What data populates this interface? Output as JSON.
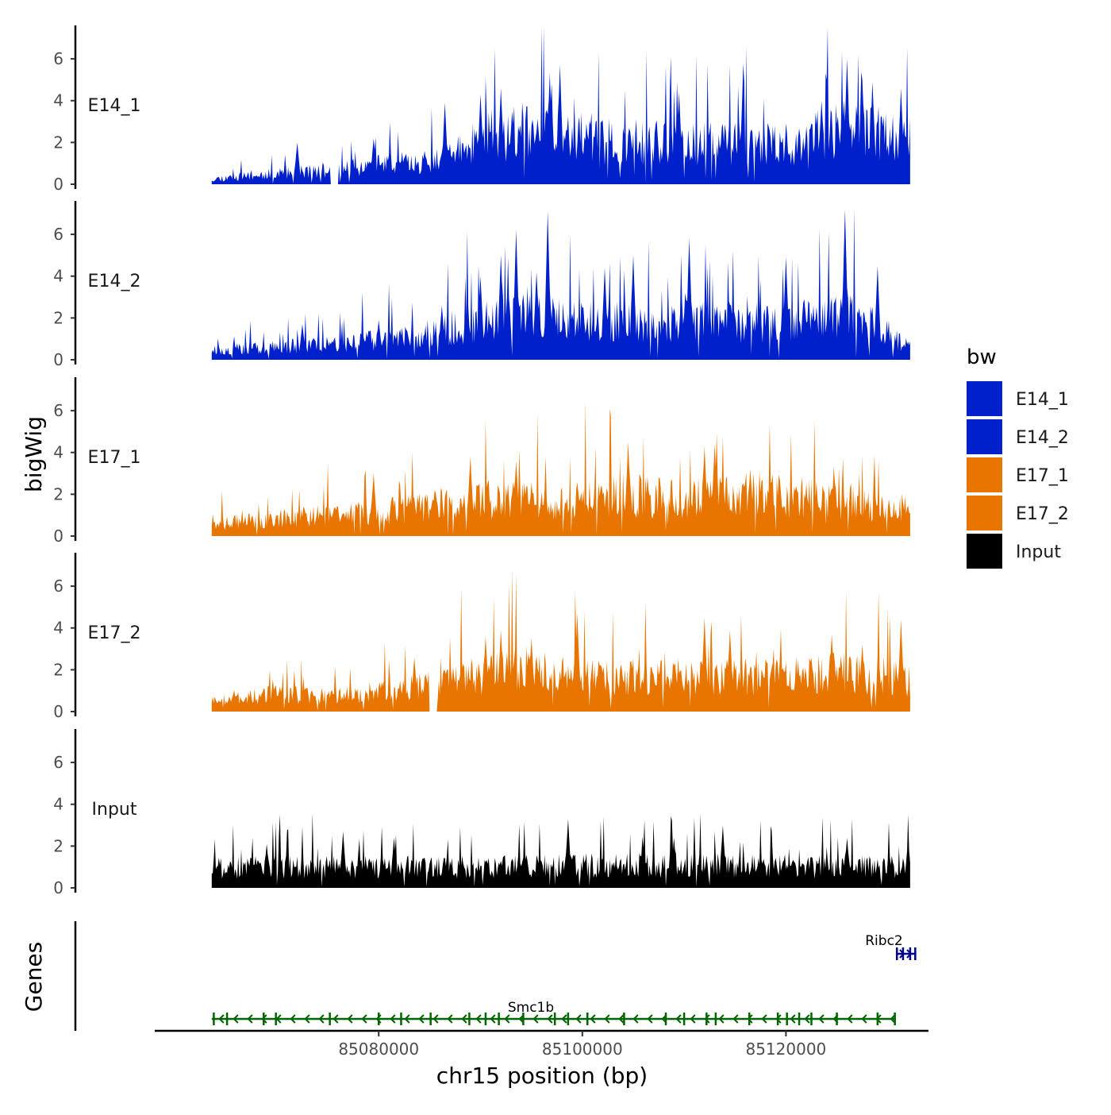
{
  "chart_data": {
    "type": "area",
    "title": "",
    "xlabel": "chr15 position (bp)",
    "ylabel_tracks": "bigWig",
    "ylabel_genes": "Genes",
    "xlim": [
      85058000,
      85134000
    ],
    "ylim": [
      0,
      7.6
    ],
    "x_ticks": [
      85080000,
      85100000,
      85120000
    ],
    "x_tick_labels": [
      "85080000",
      "85100000",
      "85120000"
    ],
    "y_ticks": [
      0,
      2,
      4,
      6
    ],
    "y_tick_labels": [
      "0",
      "2",
      "4",
      "6"
    ],
    "data_range": [
      85063600,
      85132200
    ],
    "legend": {
      "title": "bw",
      "position": "right",
      "entries": [
        {
          "label": "E14_1",
          "color": "#0020CC"
        },
        {
          "label": "E14_2",
          "color": "#0020CC"
        },
        {
          "label": "E17_1",
          "color": "#E87500"
        },
        {
          "label": "E17_2",
          "color": "#E87500"
        },
        {
          "label": "Input",
          "color": "#000000"
        }
      ]
    },
    "series": [
      {
        "name": "E14_1",
        "color": "#0020CC",
        "seed": 11,
        "profile": [
          [
            85063600,
            0.25
          ],
          [
            85070000,
            0.5
          ],
          [
            85076000,
            0.7
          ],
          [
            85080000,
            0.9
          ],
          [
            85086000,
            1.1
          ],
          [
            85090000,
            2.2
          ],
          [
            85095000,
            2.5
          ],
          [
            85100000,
            2.0
          ],
          [
            85110000,
            1.9
          ],
          [
            85120000,
            1.9
          ],
          [
            85126000,
            2.6
          ],
          [
            85132200,
            2.0
          ]
        ],
        "peaks": [
          [
            85072000,
            2.0
          ],
          [
            85079500,
            2.2
          ],
          [
            85086500,
            3.9
          ],
          [
            85090000,
            4.3
          ],
          [
            85092000,
            4.6
          ],
          [
            85096800,
            5.3
          ],
          [
            85097800,
            5.7
          ],
          [
            85109500,
            4.4
          ],
          [
            85123500,
            4.0
          ],
          [
            85126000,
            6.0
          ],
          [
            85127500,
            5.0
          ],
          [
            85128500,
            4.9
          ],
          [
            85131300,
            4.6
          ]
        ],
        "gaps": [
          [
            85075300,
            85076000
          ]
        ]
      },
      {
        "name": "E14_2",
        "color": "#0020CC",
        "seed": 23,
        "profile": [
          [
            85063600,
            0.45
          ],
          [
            85070000,
            0.6
          ],
          [
            85076000,
            0.8
          ],
          [
            85082000,
            1.0
          ],
          [
            85088000,
            1.6
          ],
          [
            85093000,
            2.0
          ],
          [
            85100000,
            1.8
          ],
          [
            85110000,
            1.8
          ],
          [
            85120000,
            1.7
          ],
          [
            85125000,
            2.2
          ],
          [
            85129000,
            1.5
          ],
          [
            85132200,
            0.6
          ]
        ],
        "peaks": [
          [
            85072500,
            1.7
          ],
          [
            85080000,
            1.9
          ],
          [
            85086200,
            2.6
          ],
          [
            85090000,
            4.0
          ],
          [
            85092000,
            5.0
          ],
          [
            85093500,
            6.2
          ],
          [
            85095500,
            4.2
          ],
          [
            85096600,
            7.1
          ],
          [
            85102200,
            4.4
          ],
          [
            85105000,
            5.0
          ],
          [
            85110500,
            5.8
          ],
          [
            85120000,
            4.9
          ],
          [
            85125800,
            7.2
          ],
          [
            85129000,
            4.5
          ]
        ],
        "gaps": []
      },
      {
        "name": "E17_1",
        "color": "#E87500",
        "seed": 37,
        "profile": [
          [
            85063600,
            0.6
          ],
          [
            85070000,
            0.8
          ],
          [
            85076000,
            1.0
          ],
          [
            85082000,
            1.2
          ],
          [
            85090000,
            1.7
          ],
          [
            85098000,
            1.6
          ],
          [
            85104000,
            1.9
          ],
          [
            85110000,
            1.8
          ],
          [
            85116000,
            2.0
          ],
          [
            85124000,
            1.7
          ],
          [
            85132200,
            1.3
          ]
        ],
        "peaks": [
          [
            85079500,
            3.0
          ],
          [
            85085500,
            2.2
          ],
          [
            85089000,
            3.8
          ],
          [
            85093500,
            3.6
          ],
          [
            85104500,
            4.5
          ],
          [
            85112000,
            4.3
          ],
          [
            85113000,
            4.4
          ],
          [
            85116500,
            3.2
          ]
        ],
        "gaps": []
      },
      {
        "name": "E17_2",
        "color": "#E87500",
        "seed": 53,
        "profile": [
          [
            85063600,
            0.6
          ],
          [
            85070000,
            0.8
          ],
          [
            85076000,
            0.7
          ],
          [
            85082000,
            1.1
          ],
          [
            85086000,
            1.3
          ],
          [
            85090000,
            1.7
          ],
          [
            85095000,
            2.0
          ],
          [
            85100000,
            1.6
          ],
          [
            85110000,
            1.6
          ],
          [
            85120000,
            1.6
          ],
          [
            85126000,
            1.9
          ],
          [
            85132200,
            1.5
          ]
        ],
        "peaks": [
          [
            85083500,
            2.6
          ],
          [
            85090500,
            3.6
          ],
          [
            85092000,
            3.9
          ],
          [
            85095000,
            3.5
          ],
          [
            85099500,
            4.7
          ],
          [
            85112000,
            4.5
          ],
          [
            85114500,
            3.9
          ],
          [
            85124500,
            3.7
          ],
          [
            85127500,
            3.2
          ],
          [
            85131300,
            4.4
          ]
        ],
        "gaps": [
          [
            85085000,
            85085700
          ]
        ]
      },
      {
        "name": "Input",
        "color": "#000000",
        "seed": 71,
        "profile": [
          [
            85063600,
            0.9
          ],
          [
            85070000,
            1.0
          ],
          [
            85080000,
            0.95
          ],
          [
            85090000,
            1.0
          ],
          [
            85100000,
            1.05
          ],
          [
            85110000,
            1.05
          ],
          [
            85120000,
            1.0
          ],
          [
            85132200,
            0.95
          ]
        ],
        "peaks": [
          [
            85069000,
            2.1
          ],
          [
            85076500,
            2.7
          ],
          [
            85081500,
            2.4
          ],
          [
            85098600,
            3.3
          ],
          [
            85109000,
            2.4
          ],
          [
            85113800,
            3.0
          ],
          [
            85126000,
            2.4
          ],
          [
            85132000,
            2.4
          ]
        ],
        "gaps": []
      }
    ],
    "genes": [
      {
        "name": "Smc1b",
        "start": 85063600,
        "end": 85130800,
        "strand": "-",
        "color": "#006400",
        "row": 0,
        "exons": [
          85063800,
          85065100,
          85068700,
          85069900,
          85075200,
          85080000,
          85082200,
          85085100,
          85088900,
          85090500,
          85091800,
          85094200,
          85097300,
          85098600,
          85100500,
          85104100,
          85108200,
          85110000,
          85112200,
          85113100,
          85116400,
          85119200,
          85120100,
          85121300,
          85122500,
          85125000,
          85129000,
          85130700
        ]
      },
      {
        "name": "Ribc2",
        "start": 85130800,
        "end": 85132800,
        "strand": "+",
        "color": "#00008B",
        "row": 1,
        "exons": [
          85130900,
          85131500,
          85132200,
          85132700
        ]
      }
    ]
  }
}
